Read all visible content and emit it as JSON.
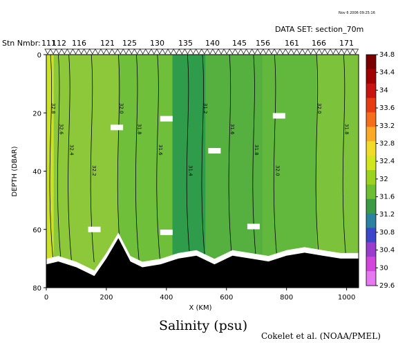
{
  "header": {
    "date": "Nov 6 2006 09:25:16",
    "dataset": "DATA SET: section_70m",
    "stn_label": "Stn Nmbr:",
    "stations": [
      "111",
      "112",
      "116",
      "121",
      "125",
      "130",
      "135",
      "140",
      "145",
      "156",
      "161",
      "166",
      "171"
    ],
    "title": "Salinity (psu)",
    "credit": "Cokelet et al. (NOAA/PMEL)"
  },
  "chart_data": {
    "type": "heatmap",
    "title": "Salinity (psu)",
    "xlabel": "X (KM)",
    "ylabel": "DEPTH (DBAR)",
    "xlim": [
      0,
      1040
    ],
    "ylim": [
      80,
      0
    ],
    "x_ticks": [
      "0",
      "200",
      "400",
      "600",
      "800",
      "1000"
    ],
    "y_ticks": [
      "0",
      "20",
      "40",
      "60",
      "80"
    ],
    "colorbar": {
      "levels": [
        34.8,
        34.4,
        34,
        33.6,
        33.2,
        32.8,
        32.4,
        32,
        31.6,
        31.2,
        30.8,
        30.4,
        30,
        29.6
      ],
      "labels": [
        "34.8",
        "34.4",
        "34",
        "33.6",
        "33.2",
        "32.8",
        "32.4",
        "32",
        "31.6",
        "31.2",
        "30.8",
        "30.4",
        "30",
        "29.6"
      ],
      "colors": [
        "#7a0000",
        "#a00000",
        "#c81410",
        "#e63c14",
        "#f56e1e",
        "#faaa28",
        "#f0dc28",
        "#d2e61e",
        "#9ad21e",
        "#6ebe32",
        "#3c9a46",
        "#2a82a0",
        "#3c46c8",
        "#9a3ccc",
        "#d246dc",
        "#e678f0"
      ],
      "min_label": "29.6"
    },
    "field_bands": [
      {
        "x0": 0,
        "x1": 25,
        "value": 32.6,
        "color": "#cbe02a"
      },
      {
        "x0": 25,
        "x1": 240,
        "value": 32.1,
        "color": "#8cc83a"
      },
      {
        "x0": 240,
        "x1": 420,
        "value": 31.9,
        "color": "#6fbf3a"
      },
      {
        "x0": 420,
        "x1": 530,
        "value": 31.5,
        "color": "#2f9c4c"
      },
      {
        "x0": 530,
        "x1": 720,
        "value": 31.7,
        "color": "#55b03f"
      },
      {
        "x0": 720,
        "x1": 900,
        "value": 31.8,
        "color": "#62b83c"
      },
      {
        "x0": 900,
        "x1": 1040,
        "value": 32.0,
        "color": "#7cc23a"
      }
    ],
    "contour_labels": [
      "32.8",
      "32.6",
      "32.4",
      "32.2",
      "32.0",
      "31.8",
      "31.6",
      "31.4",
      "31.2",
      "31.6",
      "31.8",
      "32.0",
      "32.0",
      "31.8"
    ],
    "bottom_depth_km": [
      [
        0,
        72
      ],
      [
        40,
        71
      ],
      [
        100,
        73
      ],
      [
        160,
        76
      ],
      [
        200,
        70
      ],
      [
        240,
        63
      ],
      [
        280,
        71
      ],
      [
        320,
        73
      ],
      [
        380,
        72
      ],
      [
        440,
        70
      ],
      [
        500,
        69
      ],
      [
        560,
        72
      ],
      [
        620,
        69
      ],
      [
        680,
        70
      ],
      [
        740,
        71
      ],
      [
        800,
        69
      ],
      [
        860,
        68
      ],
      [
        920,
        69
      ],
      [
        980,
        70
      ],
      [
        1040,
        70
      ]
    ],
    "no_data_patches": [
      {
        "x": 235,
        "depth": 25
      },
      {
        "x": 400,
        "depth": 22
      },
      {
        "x": 560,
        "depth": 33
      },
      {
        "x": 775,
        "depth": 21
      },
      {
        "x": 160,
        "depth": 60
      },
      {
        "x": 400,
        "depth": 61
      },
      {
        "x": 690,
        "depth": 59
      }
    ]
  }
}
